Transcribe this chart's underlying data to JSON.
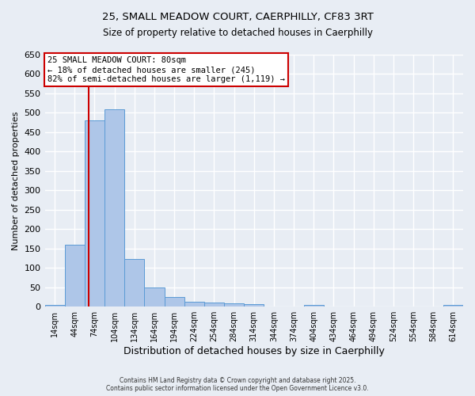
{
  "title_line1": "25, SMALL MEADOW COURT, CAERPHILLY, CF83 3RT",
  "title_line2": "Size of property relative to detached houses in Caerphilly",
  "xlabel": "Distribution of detached houses by size in Caerphilly",
  "ylabel": "Number of detached properties",
  "bin_labels": [
    "14sqm",
    "44sqm",
    "74sqm",
    "104sqm",
    "134sqm",
    "164sqm",
    "194sqm",
    "224sqm",
    "254sqm",
    "284sqm",
    "314sqm",
    "344sqm",
    "374sqm",
    "404sqm",
    "434sqm",
    "464sqm",
    "494sqm",
    "524sqm",
    "554sqm",
    "584sqm",
    "614sqm"
  ],
  "bin_starts": [
    14,
    44,
    74,
    104,
    134,
    164,
    194,
    224,
    254,
    284,
    314,
    344,
    374,
    404,
    434,
    464,
    494,
    524,
    554,
    584,
    614
  ],
  "bar_heights": [
    5,
    160,
    480,
    510,
    122,
    50,
    25,
    12,
    10,
    8,
    7,
    0,
    0,
    5,
    0,
    0,
    0,
    0,
    0,
    0,
    5
  ],
  "bar_color": "#aec6e8",
  "bar_edge_color": "#5b9bd5",
  "background_color": "#e8edf4",
  "grid_color": "#ffffff",
  "property_size": 80,
  "vline_color": "#cc0000",
  "annotation_line1": "25 SMALL MEADOW COURT: 80sqm",
  "annotation_line2": "← 18% of detached houses are smaller (245)",
  "annotation_line3": "82% of semi-detached houses are larger (1,119) →",
  "annotation_box_color": "#cc0000",
  "annotation_bg": "#ffffff",
  "ylim_max": 650,
  "yticks": [
    0,
    50,
    100,
    150,
    200,
    250,
    300,
    350,
    400,
    450,
    500,
    550,
    600,
    650
  ],
  "fig_width": 6.0,
  "fig_height": 5.0,
  "footer_line1": "Contains HM Land Registry data © Crown copyright and database right 2025.",
  "footer_line2": "Contains public sector information licensed under the Open Government Licence v3.0."
}
